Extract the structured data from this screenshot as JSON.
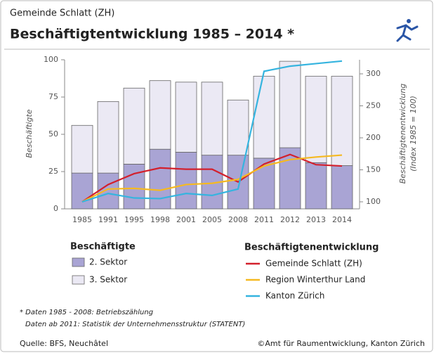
{
  "chart_data": {
    "type": "bar",
    "header": "Gemeinde Schlatt (ZH)",
    "title": "Beschäftigtentwicklung 1985 – 2014 *",
    "ylabel": "Beschäftigte",
    "y2label": [
      "Beschäftigtenentwicklung",
      "(Index 1985 = 100)"
    ],
    "categories": [
      "1985",
      "1991",
      "1995",
      "1998",
      "2001",
      "2005",
      "2008",
      "2011",
      "2012",
      "2013",
      "2014"
    ],
    "ylim": [
      0,
      100
    ],
    "yticks": [
      0,
      25,
      50,
      75,
      100
    ],
    "y2lim": [
      89,
      322
    ],
    "y2ticks": [
      100,
      150,
      200,
      250,
      300
    ],
    "legend_title": "Beschäftigte",
    "line_legend_title": "Beschäftigtenentwicklung",
    "series": [
      {
        "name": "2. Sektor",
        "color": "#a9a4d4",
        "values": [
          24,
          24,
          30,
          40,
          38,
          36,
          36,
          34,
          41,
          31,
          29
        ]
      },
      {
        "name": "3. Sektor",
        "color": "#ebe9f4",
        "values": [
          32,
          48,
          51,
          46,
          47,
          49,
          37,
          55,
          58,
          58,
          60
        ]
      },
      {
        "name": "Gemeinde Schlatt (ZH)",
        "color": "#d3202c",
        "axis": "y2",
        "values": [
          100,
          127,
          144,
          153,
          151,
          151,
          131,
          159,
          174,
          158,
          156
        ]
      },
      {
        "name": "Region Winterthur Land",
        "color": "#f5b921",
        "axis": "y2",
        "values": [
          100,
          120,
          121,
          118,
          127,
          129,
          135,
          156,
          166,
          170,
          173
        ]
      },
      {
        "name": "Kanton Zürich",
        "color": "#35b4df",
        "axis": "y2",
        "values": [
          100,
          113,
          106,
          105,
          113,
          110,
          120,
          304,
          312,
          316,
          320
        ]
      }
    ],
    "footnotes": [
      "* Daten 1985 - 2008: Betriebszählung",
      "Daten ab 2011: Statistik der Unternehmensstruktur (STATENT)"
    ],
    "source": "Quelle: BFS, Neuchâtel",
    "copyright": "©Amt für Raumentwicklung, Kanton Zürich"
  }
}
